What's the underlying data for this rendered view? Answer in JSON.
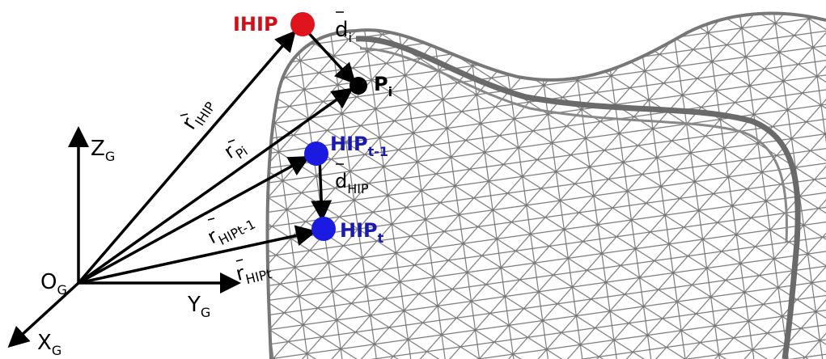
{
  "labels": [
    {
      "base": "IHIP"
    },
    {
      "base": "d",
      "sub": "i"
    },
    {
      "base": "P",
      "sub": "i"
    },
    {
      "base": "Z",
      "sub": "G"
    },
    {
      "base": "r",
      "sub": "IHIP"
    },
    {
      "base": "r",
      "sub": "Pi"
    },
    {
      "base": "HIP",
      "sub": "t-1"
    },
    {
      "base": "d",
      "sub": "HIP"
    },
    {
      "base": "r",
      "sub": "HIPt-1"
    },
    {
      "base": "HIP",
      "sub": "t"
    },
    {
      "base": "r",
      "sub": "HIPt"
    },
    {
      "base": "O",
      "sub": "G"
    },
    {
      "base": "Y",
      "sub": "G"
    },
    {
      "base": "X",
      "sub": "G"
    }
  ]
}
